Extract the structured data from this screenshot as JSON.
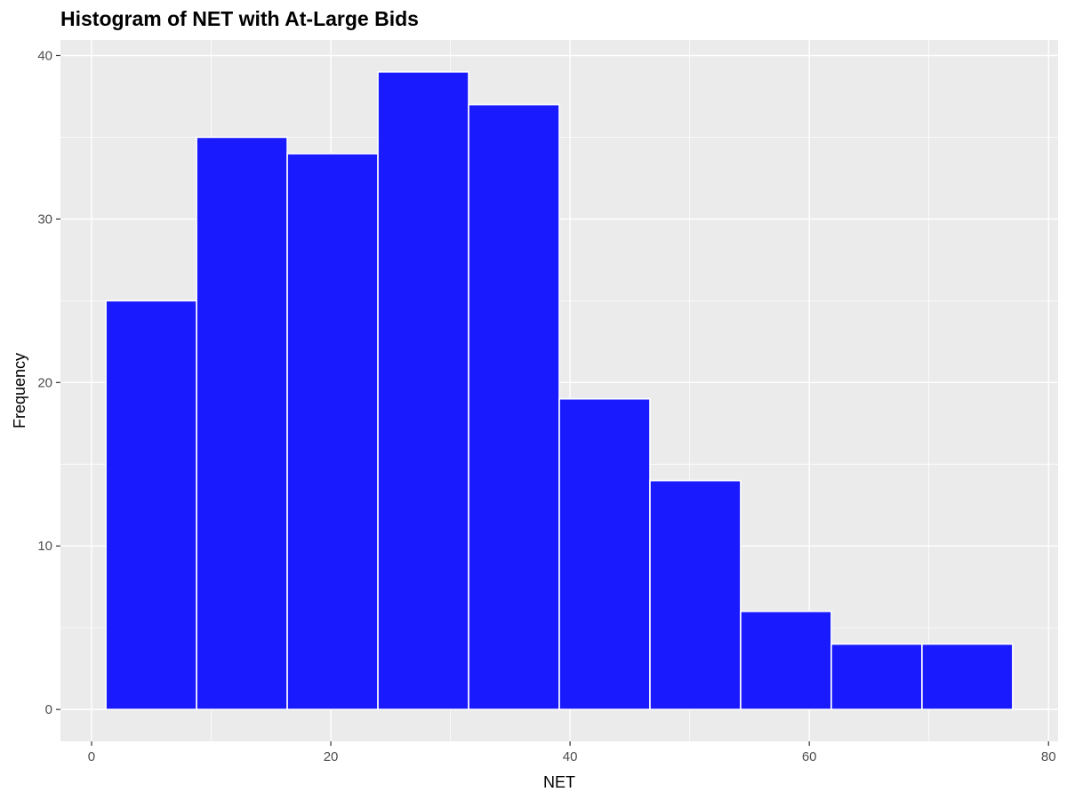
{
  "chart_data": {
    "type": "bar",
    "title": "Histogram of NET with At-Large Bids",
    "xlabel": "NET",
    "ylabel": "Frequency",
    "bins": [
      {
        "start": 1.2,
        "end": 8.78,
        "count": 25
      },
      {
        "start": 8.78,
        "end": 16.36,
        "count": 35
      },
      {
        "start": 16.36,
        "end": 23.94,
        "count": 34
      },
      {
        "start": 23.94,
        "end": 31.52,
        "count": 39
      },
      {
        "start": 31.52,
        "end": 39.1,
        "count": 37
      },
      {
        "start": 39.1,
        "end": 46.68,
        "count": 19
      },
      {
        "start": 46.68,
        "end": 54.26,
        "count": 14
      },
      {
        "start": 54.26,
        "end": 61.84,
        "count": 6
      },
      {
        "start": 61.84,
        "end": 69.42,
        "count": 4
      },
      {
        "start": 69.42,
        "end": 77.0,
        "count": 4
      }
    ],
    "xlim": [
      -2.6,
      80.8
    ],
    "ylim": [
      -1.95,
      40.95
    ],
    "xticks": [
      0,
      20,
      40,
      60,
      80
    ],
    "yticks": [
      0,
      10,
      20,
      30,
      40
    ],
    "grid": true,
    "bar_color": "#1A1AFF",
    "panel_color": "#EBEBEB"
  }
}
